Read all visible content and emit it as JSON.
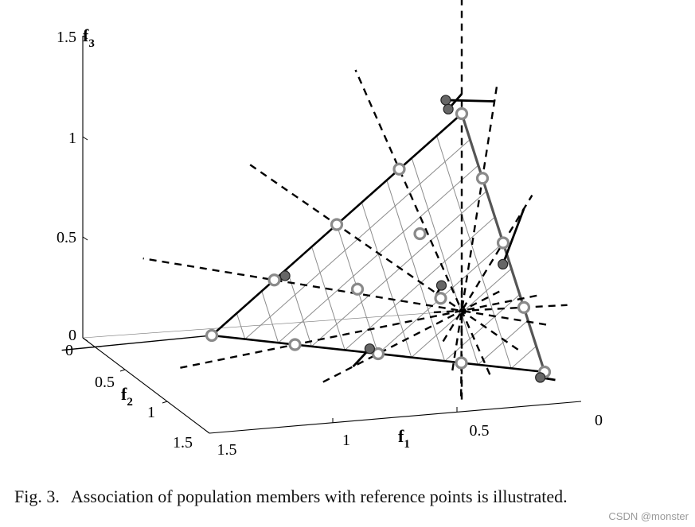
{
  "chart_data": {
    "type": "scatter",
    "projection": "3d",
    "title": "",
    "axes": {
      "f1": {
        "label": "f",
        "subscript": "1",
        "ticks": [
          0,
          0.5,
          1,
          1.5
        ],
        "tick_labels": [
          "0",
          "0.5",
          "1",
          "1.5"
        ],
        "range": [
          0,
          1.5
        ]
      },
      "f2": {
        "label": "f",
        "subscript": "2",
        "ticks": [
          0,
          0.5,
          1,
          1.5
        ],
        "tick_labels": [
          "0",
          "0.5",
          "1",
          "1.5"
        ],
        "range": [
          0,
          1.5
        ]
      },
      "f3": {
        "label": "f",
        "subscript": "3",
        "ticks": [
          0,
          0.5,
          1,
          1.5
        ],
        "tick_labels": [
          "0",
          "0.5",
          "1",
          "1.5"
        ],
        "range": [
          0,
          1.5
        ]
      }
    },
    "hyperplane": {
      "vertices": [
        [
          1,
          0,
          0
        ],
        [
          0,
          1,
          0
        ],
        [
          0,
          0,
          1
        ]
      ],
      "grid_divisions": 10
    },
    "reference_points": [
      [
        0,
        1,
        0
      ],
      [
        0,
        0.75,
        0.25
      ],
      [
        0,
        0.5,
        0.5
      ],
      [
        0,
        0.25,
        0.75
      ],
      [
        0,
        0,
        1
      ],
      [
        0.25,
        0,
        0.75
      ],
      [
        0.5,
        0,
        0.5
      ],
      [
        0.75,
        0,
        0.25
      ],
      [
        1,
        0,
        0
      ],
      [
        0.75,
        0.25,
        0
      ],
      [
        0.5,
        0.5,
        0
      ],
      [
        0.25,
        0.75,
        0
      ],
      [
        0.25,
        0.25,
        0.5
      ],
      [
        0.25,
        0.5,
        0.25
      ],
      [
        0.5,
        0.25,
        0.25
      ]
    ],
    "reference_lines": [
      {
        "point": [
          0.25,
          0,
          0.75
        ]
      },
      {
        "point": [
          0.5,
          0,
          0.5
        ]
      },
      {
        "point": [
          0.75,
          0,
          0.25
        ]
      },
      {
        "point": [
          0,
          0.25,
          0.75
        ]
      },
      {
        "point": [
          0,
          0.5,
          0.5
        ]
      },
      {
        "point": [
          0,
          0.75,
          0.25
        ]
      },
      {
        "point": [
          0.25,
          0.75,
          0
        ]
      },
      {
        "point": [
          0.5,
          0.5,
          0
        ]
      },
      {
        "point": [
          0.75,
          0.25,
          0
        ]
      },
      {
        "point": [
          0,
          0,
          1
        ]
      }
    ],
    "population_members": [
      {
        "position": [
          0.18,
          0.35,
          1.2
        ],
        "associated_reference": [
          0,
          0.25,
          0.75
        ]
      },
      {
        "position": [
          0.06,
          1.13,
          0.02
        ],
        "associated_reference": [
          0,
          1,
          0
        ]
      },
      {
        "position": [
          0.72,
          0.04,
          0.28
        ],
        "associated_reference": [
          0.75,
          0,
          0.25
        ]
      },
      {
        "position": [
          0.6,
          0.7,
          0.1
        ],
        "associated_reference": [
          0.5,
          0.5,
          0
        ]
      },
      {
        "position": [
          0.15,
          0.95,
          0.55
        ],
        "associated_reference": [
          0,
          0.5,
          0.5
        ]
      },
      {
        "position": [
          0.28,
          0.6,
          0.35
        ],
        "associated_reference": [
          0.25,
          0.5,
          0.25
        ]
      },
      {
        "position": [
          0.12,
          0.2,
          1.1
        ],
        "associated_reference": [
          0,
          0,
          1
        ]
      }
    ]
  },
  "caption": {
    "fig_label": "Fig. 3.",
    "text": "Association of population members with reference points is illustrated."
  },
  "watermark": "CSDN @monster"
}
